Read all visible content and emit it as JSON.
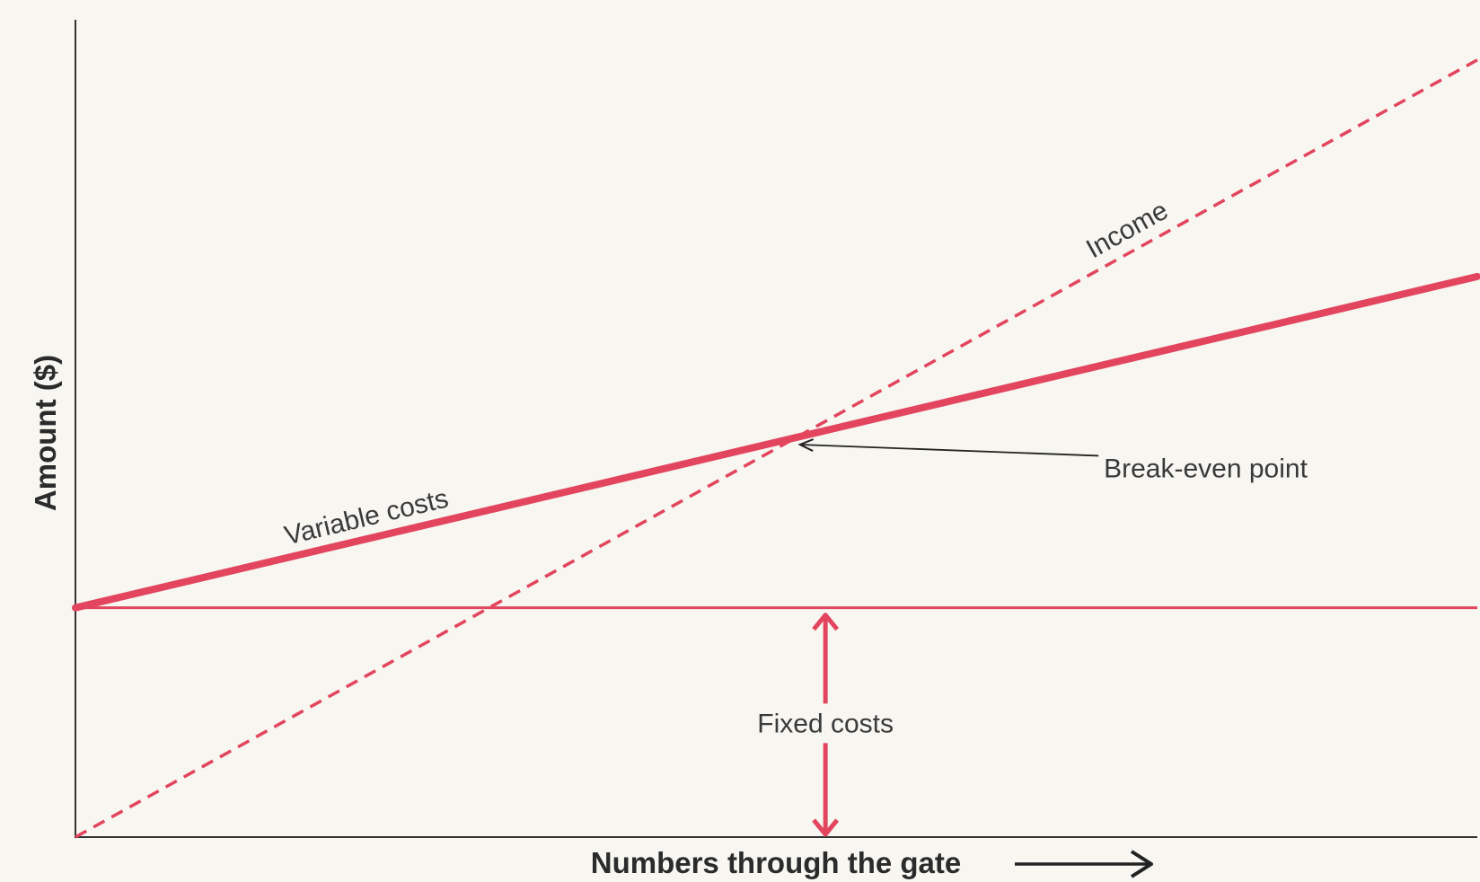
{
  "chart_data": {
    "type": "line",
    "title": "",
    "xlabel": "Numbers through the gate",
    "ylabel": "Amount ($)",
    "grid": false,
    "legend": "none",
    "series": [
      {
        "name": "Income",
        "x": [
          0,
          1
        ],
        "y": [
          0,
          1.22
        ],
        "style": "dashed"
      },
      {
        "name": "Variable costs",
        "x": [
          0,
          1
        ],
        "y": [
          0.36,
          0.88
        ],
        "style": "solid-thick"
      },
      {
        "name": "Fixed costs",
        "x": [
          0,
          1
        ],
        "y": [
          0.36,
          0.36
        ],
        "style": "solid-thin"
      }
    ],
    "annotations": [
      {
        "text": "Break-even point",
        "x": 0.535,
        "y": 0.655
      },
      {
        "text": "Fixed costs",
        "x": 0.535,
        "y": 0.18
      }
    ],
    "xlim": [
      0,
      1
    ],
    "ylim": [
      0,
      1.3
    ]
  },
  "colors": {
    "series": "#e2455d",
    "axis": "#333333",
    "annotation": "#222222"
  },
  "icons": {
    "axis_arrow": "right-arrow-icon"
  }
}
